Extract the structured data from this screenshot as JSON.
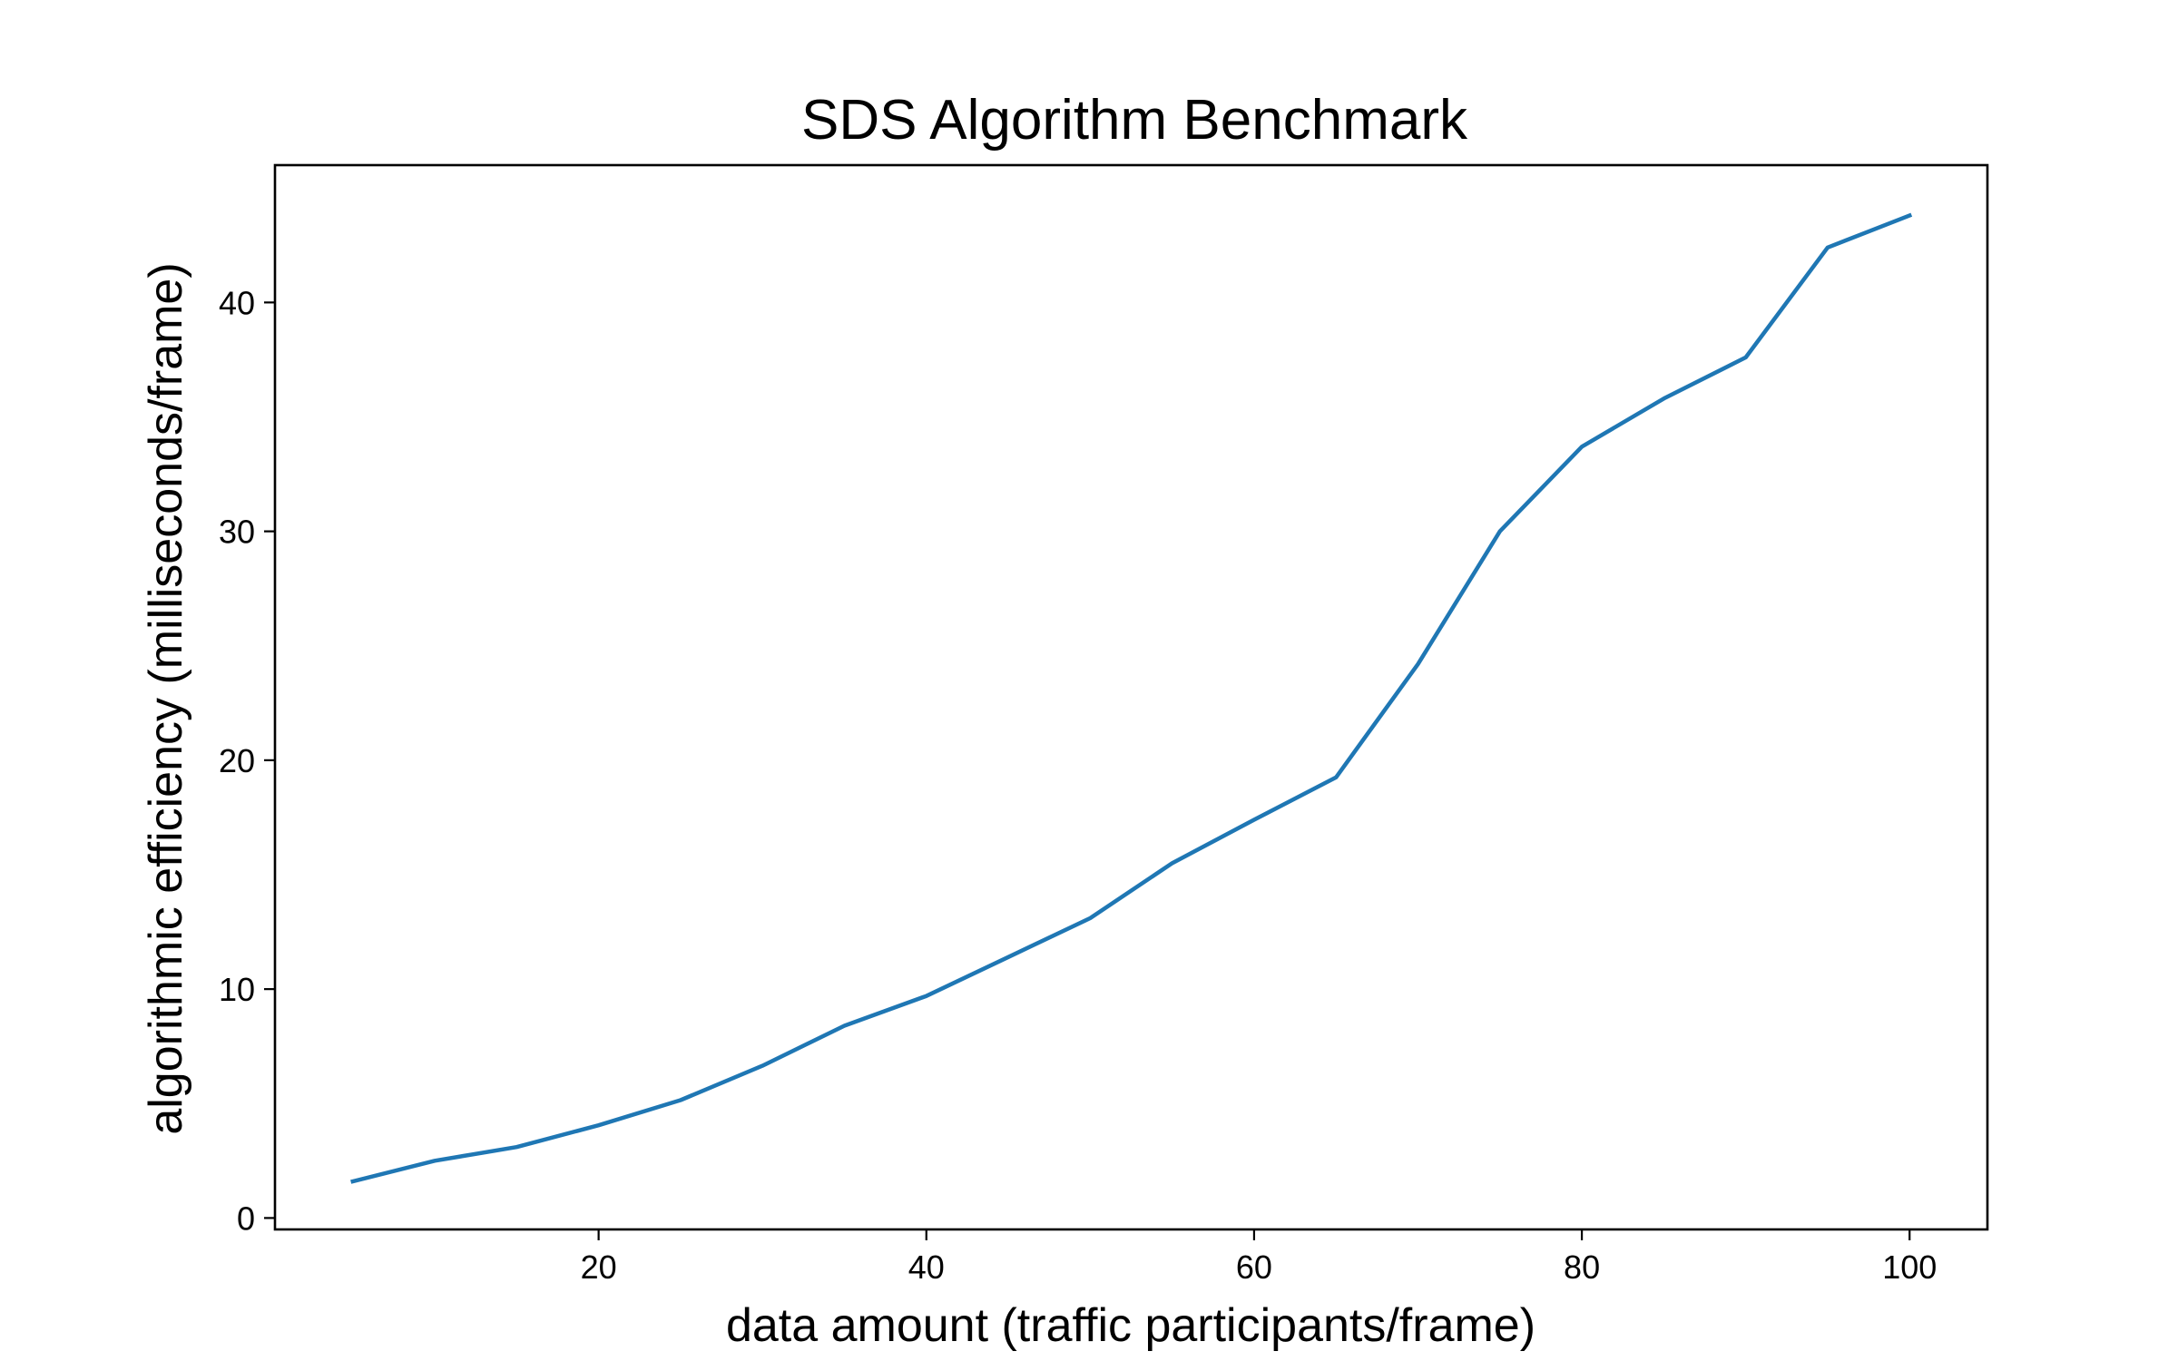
{
  "chart_data": {
    "type": "line",
    "title": "SDS Algorithm Benchmark",
    "xlabel": "data amount (traffic participants/frame)",
    "ylabel": "algorithmic efficiency (milliseconds/frame)",
    "xlim": [
      0.25,
      104.75
    ],
    "ylim": [
      -0.5,
      46
    ],
    "x_ticks": [
      20,
      40,
      60,
      80,
      100
    ],
    "y_ticks": [
      0,
      10,
      20,
      30,
      40
    ],
    "x_tick_labels": [
      "20",
      "40",
      "60",
      "80",
      "100"
    ],
    "y_tick_labels": [
      "0",
      "10",
      "20",
      "30",
      "40"
    ],
    "grid": false,
    "legend": "none",
    "series": [
      {
        "name": "SDS",
        "color": "#1f77b4",
        "x": [
          5,
          10,
          15,
          20,
          25,
          30,
          35,
          40,
          45,
          50,
          55,
          60,
          65,
          70,
          75,
          80,
          85,
          90,
          95,
          100
        ],
        "values": [
          1.6,
          2.5,
          3.1,
          4.05,
          5.15,
          6.65,
          8.4,
          9.7,
          11.4,
          13.1,
          15.5,
          17.4,
          19.25,
          24.2,
          30.0,
          33.7,
          35.8,
          37.6,
          42.4,
          43.8
        ]
      }
    ]
  }
}
